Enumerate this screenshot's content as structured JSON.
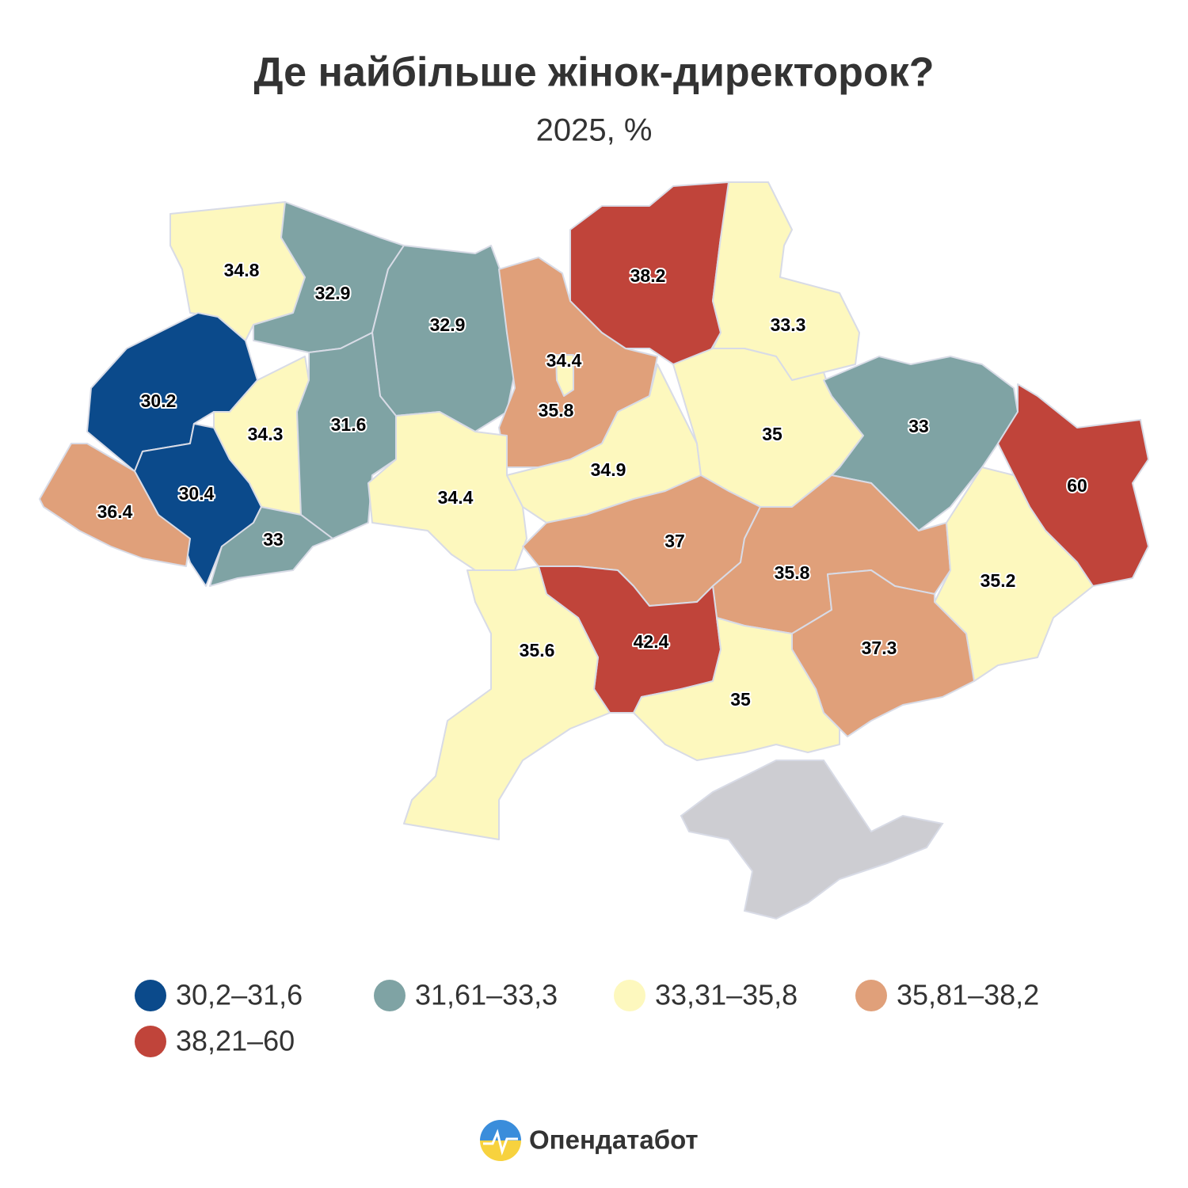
{
  "title": "Де найбільше жінок-директорок?",
  "subtitle": "2025, %",
  "brand": "Опендатабот",
  "legend": [
    {
      "label": "30,2–31,6",
      "color": "#0b4a8b"
    },
    {
      "label": "31,61–33,3",
      "color": "#7fa3a4"
    },
    {
      "label": "33,31–35,8",
      "color": "#fdf8be"
    },
    {
      "label": "35,81–38,2",
      "color": "#e0a07a"
    },
    {
      "label": "38,21–60",
      "color": "#c0443a"
    }
  ],
  "regions": [
    {
      "value": 34.8,
      "color": "#fdf8be"
    },
    {
      "value": 32.9,
      "color": "#7fa3a4"
    },
    {
      "value": 32.9,
      "color": "#7fa3a4"
    },
    {
      "value": 35.8,
      "color": "#e0a07a"
    },
    {
      "value": 34.4,
      "color": "#fdf8be"
    },
    {
      "value": 38.2,
      "color": "#c0443a"
    },
    {
      "value": 33.3,
      "color": "#fdf8be"
    },
    {
      "value": 30.2,
      "color": "#0b4a8b"
    },
    {
      "value": 34.3,
      "color": "#fdf8be"
    },
    {
      "value": 31.6,
      "color": "#7fa3a4"
    },
    {
      "value": 30.4,
      "color": "#0b4a8b"
    },
    {
      "value": 36.4,
      "color": "#e0a07a"
    },
    {
      "value": 33,
      "color": "#7fa3a4"
    },
    {
      "value": 34.4,
      "color": "#fdf8be"
    },
    {
      "value": 34.9,
      "color": "#fdf8be"
    },
    {
      "value": 35,
      "color": "#fdf8be"
    },
    {
      "value": 33,
      "color": "#7fa3a4"
    },
    {
      "value": 60,
      "color": "#c0443a"
    },
    {
      "value": 37,
      "color": "#e0a07a"
    },
    {
      "value": 35.8,
      "color": "#e0a07a"
    },
    {
      "value": 35.2,
      "color": "#fdf8be"
    },
    {
      "value": 37.3,
      "color": "#e0a07a"
    },
    {
      "value": 42.4,
      "color": "#c0443a"
    },
    {
      "value": 35.6,
      "color": "#fdf8be"
    },
    {
      "value": 35,
      "color": "#fdf8be"
    }
  ]
}
